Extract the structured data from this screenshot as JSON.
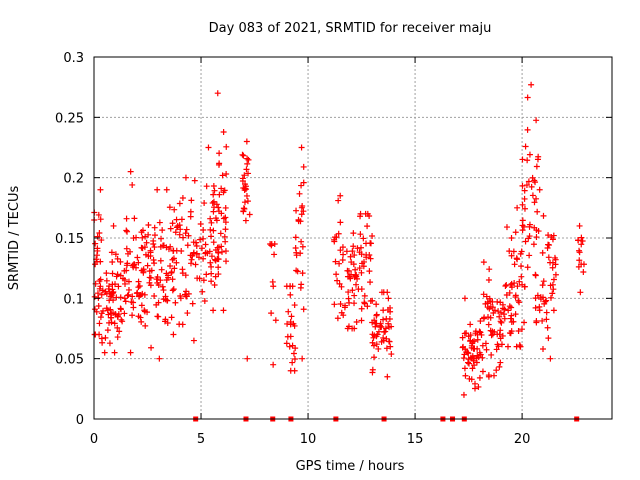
{
  "chart_data": {
    "type": "scatter",
    "title": "Day 083 of 2021, SRMTID for receiver maju",
    "xlabel": "GPS time / hours",
    "ylabel": "SRMTID / TECUs",
    "xlim": [
      0,
      24.2
    ],
    "ylim": [
      0,
      0.3
    ],
    "xticks": [
      0,
      5,
      10,
      15,
      20
    ],
    "xtick_labels": [
      "0",
      "5",
      "10",
      "15",
      "20"
    ],
    "yticks": [
      0,
      0.05,
      0.1,
      0.15,
      0.2,
      0.25,
      0.3
    ],
    "ytick_labels": [
      "0",
      "0.05",
      "0.1",
      "0.15",
      "0.2",
      "0.25",
      "0.3"
    ],
    "grid": true,
    "marker": "+",
    "color": "#ff0000",
    "zero_markers_x": [
      4.75,
      7.1,
      8.35,
      9.2,
      11.3,
      13.55,
      16.3,
      16.75,
      17.3,
      22.55
    ],
    "clusters": [
      {
        "x": [
          0,
          0.35
        ],
        "center": 0.125,
        "spread": 0.025,
        "min": 0.07,
        "max": 0.19,
        "count": 30
      },
      {
        "x": [
          0.35,
          1.5
        ],
        "center": 0.098,
        "spread": 0.02,
        "min": 0.055,
        "max": 0.16,
        "count": 70
      },
      {
        "x": [
          1.5,
          2.5
        ],
        "center": 0.118,
        "spread": 0.03,
        "min": 0.055,
        "max": 0.205,
        "count": 60
      },
      {
        "x": [
          2.5,
          3.5
        ],
        "center": 0.122,
        "spread": 0.025,
        "min": 0.05,
        "max": 0.19,
        "count": 55
      },
      {
        "x": [
          3.5,
          4.5
        ],
        "center": 0.135,
        "spread": 0.025,
        "min": 0.07,
        "max": 0.2,
        "count": 50
      },
      {
        "x": [
          4.5,
          5.5
        ],
        "center": 0.14,
        "spread": 0.025,
        "min": 0.065,
        "max": 0.225,
        "count": 45
      },
      {
        "x": [
          5.5,
          6.2
        ],
        "center": 0.16,
        "spread": 0.035,
        "min": 0.09,
        "max": 0.27,
        "count": 55
      },
      {
        "x": [
          6.9,
          7.3
        ],
        "center": 0.195,
        "spread": 0.015,
        "min": 0.05,
        "max": 0.23,
        "count": 25
      },
      {
        "x": [
          8.2,
          8.5
        ],
        "center": 0.12,
        "spread": 0.02,
        "min": 0.045,
        "max": 0.145,
        "count": 8
      },
      {
        "x": [
          9.0,
          9.4
        ],
        "center": 0.08,
        "spread": 0.02,
        "min": 0.04,
        "max": 0.11,
        "count": 22
      },
      {
        "x": [
          9.4,
          9.8
        ],
        "center": 0.15,
        "spread": 0.03,
        "min": 0.05,
        "max": 0.225,
        "count": 25
      },
      {
        "x": [
          11.2,
          12.3
        ],
        "center": 0.12,
        "spread": 0.025,
        "min": 0.075,
        "max": 0.185,
        "count": 55
      },
      {
        "x": [
          12.3,
          13.0
        ],
        "center": 0.13,
        "spread": 0.025,
        "min": 0.08,
        "max": 0.17,
        "count": 35
      },
      {
        "x": [
          13.0,
          13.9
        ],
        "center": 0.072,
        "spread": 0.015,
        "min": 0.035,
        "max": 0.105,
        "count": 50
      },
      {
        "x": [
          17.2,
          18.2
        ],
        "center": 0.055,
        "spread": 0.012,
        "min": 0.02,
        "max": 0.1,
        "count": 60
      },
      {
        "x": [
          18.2,
          19.2
        ],
        "center": 0.08,
        "spread": 0.02,
        "min": 0.035,
        "max": 0.13,
        "count": 55
      },
      {
        "x": [
          19.2,
          20.0
        ],
        "center": 0.11,
        "spread": 0.025,
        "min": 0.06,
        "max": 0.175,
        "count": 45
      },
      {
        "x": [
          20.0,
          20.8
        ],
        "center": 0.165,
        "spread": 0.04,
        "min": 0.08,
        "max": 0.277,
        "count": 50
      },
      {
        "x": [
          20.8,
          21.6
        ],
        "center": 0.12,
        "spread": 0.025,
        "min": 0.05,
        "max": 0.19,
        "count": 40
      },
      {
        "x": [
          22.6,
          22.9
        ],
        "center": 0.135,
        "spread": 0.01,
        "min": 0.105,
        "max": 0.16,
        "count": 12
      }
    ]
  }
}
